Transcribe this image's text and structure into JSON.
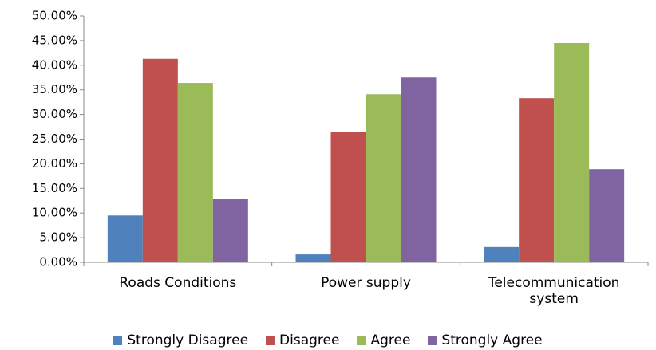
{
  "chart_data": {
    "type": "bar",
    "categories": [
      "Roads Conditions",
      "Power supply",
      "Telecommunication system"
    ],
    "series": [
      {
        "name": "Strongly Disagree",
        "color": "#4f81bd",
        "values": [
          9.5,
          1.6,
          3.1
        ]
      },
      {
        "name": "Disagree",
        "color": "#c0504d",
        "values": [
          41.3,
          26.5,
          33.3
        ]
      },
      {
        "name": "Agree",
        "color": "#9bbb59",
        "values": [
          36.4,
          34.1,
          44.5
        ]
      },
      {
        "name": "Strongly Agree",
        "color": "#8064a2",
        "values": [
          12.8,
          37.5,
          18.9
        ]
      }
    ],
    "ylim": [
      0,
      50
    ],
    "yticks": [
      {
        "value": 0,
        "label": "0.00%"
      },
      {
        "value": 5,
        "label": "5.00%"
      },
      {
        "value": 10,
        "label": "10.00%"
      },
      {
        "value": 15,
        "label": "15.00%"
      },
      {
        "value": 20,
        "label": "20.00%"
      },
      {
        "value": 25,
        "label": "25.00%"
      },
      {
        "value": 30,
        "label": "30.00%"
      },
      {
        "value": 35,
        "label": "35.00%"
      },
      {
        "value": 40,
        "label": "40.00%"
      },
      {
        "value": 45,
        "label": "45.00%"
      },
      {
        "value": 50,
        "label": "50.00%"
      }
    ],
    "legend": "bottom"
  }
}
